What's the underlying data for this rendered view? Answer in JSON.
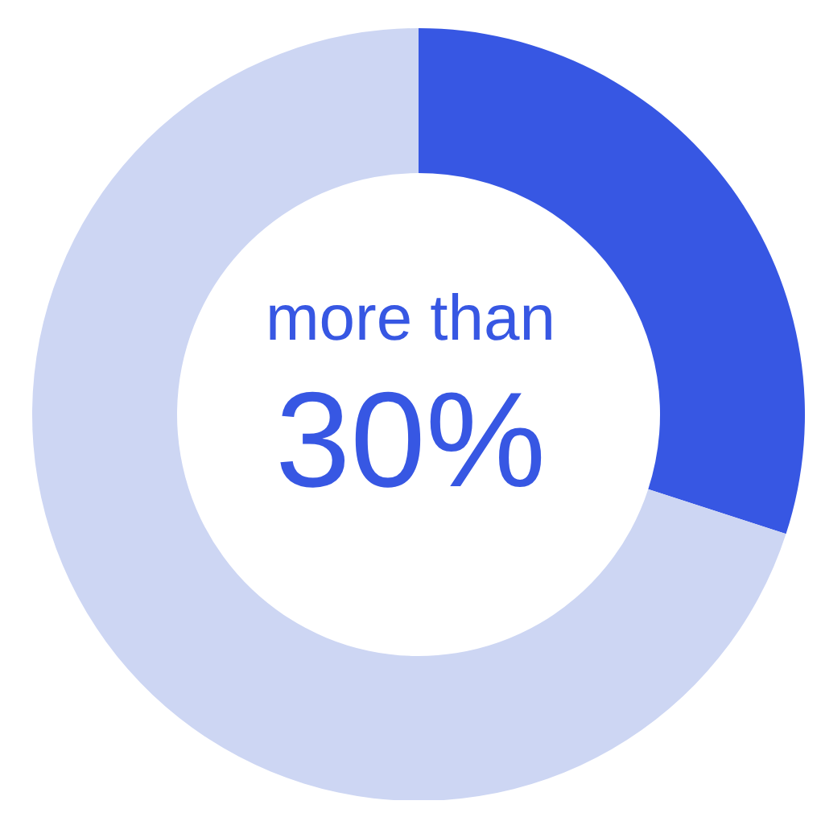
{
  "chart_data": {
    "type": "donut",
    "categories": [
      null,
      null
    ],
    "values": [
      30,
      70
    ],
    "colors": [
      "#3757e3",
      "#cdd6f3"
    ],
    "annotations": [
      "more than",
      "30%"
    ]
  }
}
